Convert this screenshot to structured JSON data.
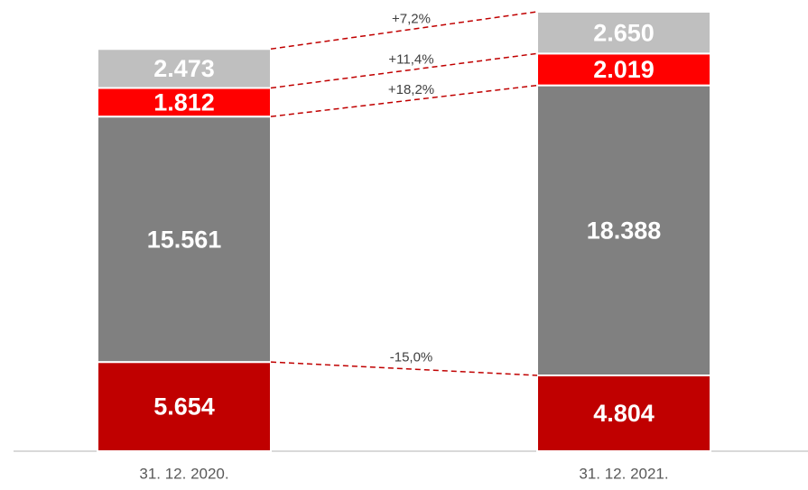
{
  "chart_data": {
    "type": "stacked_bar",
    "categories": [
      "31. 12. 2020.",
      "31. 12. 2021."
    ],
    "series": [
      {
        "color": "#c00000",
        "values": [
          5654,
          4804
        ],
        "value_labels": [
          "5.654",
          "4.804"
        ]
      },
      {
        "color": "#808080",
        "values": [
          15561,
          18388
        ],
        "value_labels": [
          "15.561",
          "18.388"
        ]
      },
      {
        "color": "#ff0000",
        "values": [
          1812,
          2019
        ],
        "value_labels": [
          "1.812",
          "2.019"
        ]
      },
      {
        "color": "#bfbfbf",
        "values": [
          2473,
          2650
        ],
        "value_labels": [
          "2.473",
          "2.650"
        ]
      }
    ],
    "annotations": [
      "-15,0%",
      "+18,2%",
      "+11,4%",
      "+7,2%"
    ]
  }
}
